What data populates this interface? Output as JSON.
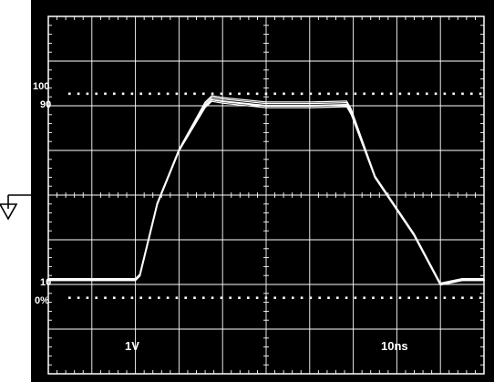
{
  "scope": {
    "colors": {
      "screen": "#000000",
      "grid": "#ffffff",
      "trace": "#ffffff",
      "frame": "#ffffff"
    },
    "ground_icon": "ground-arrow-icon",
    "reference_labels": {
      "top": "100",
      "upper": "90",
      "lower": "10",
      "bottom": "0%"
    },
    "vertical_scale": "1V",
    "time_scale": "10ns"
  },
  "chart_data": {
    "type": "line",
    "grid": true,
    "xlim": [
      0,
      10
    ],
    "ylim": [
      0,
      8
    ],
    "reference_levels": [
      {
        "label": "100",
        "y": 6.27
      },
      {
        "label": "90",
        "y": 6.06
      },
      {
        "label": "10",
        "y": 2.1
      },
      {
        "label": "0%",
        "y": 1.7
      }
    ],
    "series": [
      {
        "x": [
          0,
          2.0,
          2.1,
          2.5,
          3.0,
          3.6,
          3.75,
          4.0,
          5.0,
          6.0,
          6.85,
          6.95,
          7.5,
          8.4,
          9.0,
          9.5,
          10
        ],
        "y": [
          2.1,
          2.1,
          2.2,
          3.8,
          5.0,
          6.0,
          6.14,
          6.1,
          6.0,
          6.0,
          6.02,
          5.85,
          4.4,
          3.1,
          2.0,
          2.1,
          2.1
        ]
      }
    ]
  }
}
